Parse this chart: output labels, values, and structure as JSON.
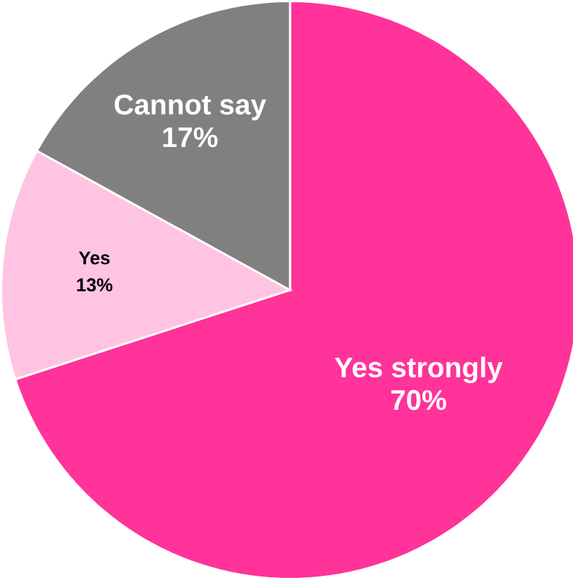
{
  "chart_data": {
    "type": "pie",
    "categories": [
      "Yes strongly",
      "Yes",
      "Cannot say"
    ],
    "values": [
      70,
      13,
      17
    ],
    "colors": [
      "#ff3399",
      "#ffc4e1",
      "#808080"
    ],
    "value_labels": [
      "70%",
      "13%",
      "17%"
    ]
  }
}
